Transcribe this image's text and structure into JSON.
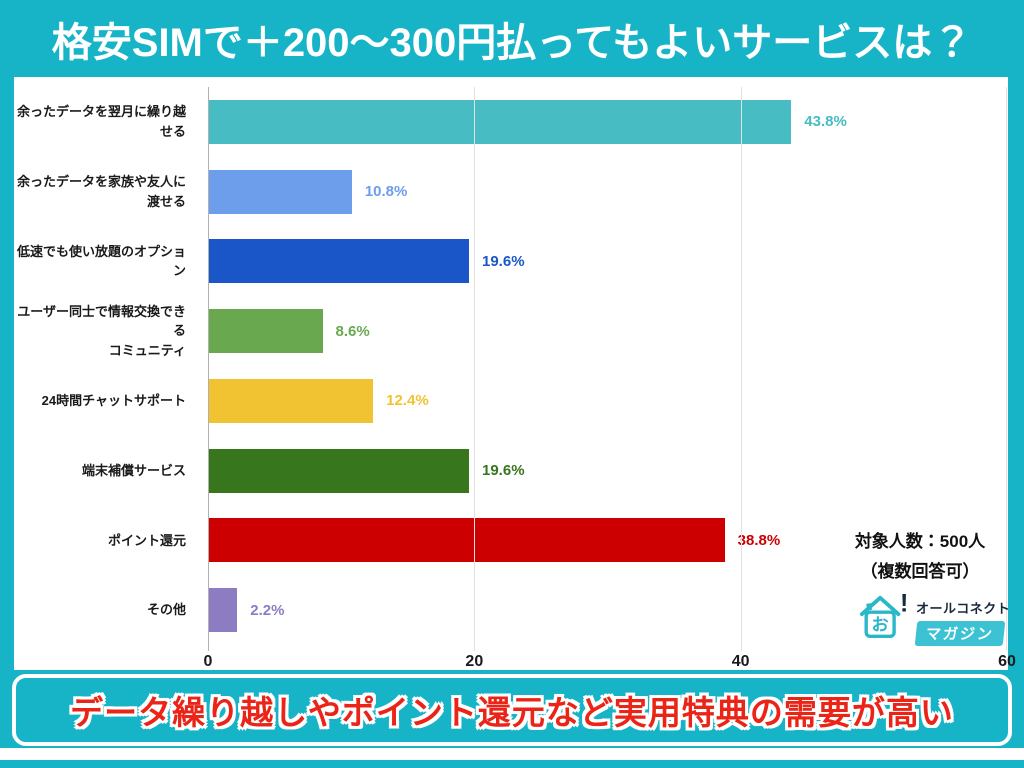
{
  "header": {
    "title": "格安SIMで＋200〜300円払ってもよいサービスは？"
  },
  "footer": {
    "message": "データ繰り越しやポイント還元など実用特典の需要が高い"
  },
  "survey_note": {
    "line1": "対象人数：500人",
    "line2": "（複数回答可）"
  },
  "logo": {
    "brand": "オールコネクト",
    "magazine": "マガジン",
    "house_char": "お",
    "exclamation": "!"
  },
  "colors": {
    "frame_teal": "#17b4c8",
    "panel_white": "#ffffff",
    "footer_text_red": "#ea2417",
    "axis_line": "#b0b0b0",
    "gridline": "#e2e2e2",
    "tick_text": "#1a1a1a",
    "logo_teal": "#2ab7c8",
    "logo_text_dark": "#16283c"
  },
  "chart_data": {
    "type": "bar",
    "orientation": "horizontal",
    "title": "格安SIMで＋200〜300円払ってもよいサービスは？",
    "categories": [
      "余ったデータを翌月に繰り越せる",
      "余ったデータを家族や友人に渡せる",
      "低速でも使い放題のオプション",
      "ユーザー同士で情報交換できるコミュニティ",
      "24時間チャットサポート",
      "端末補償サービス",
      "ポイント還元",
      "その他"
    ],
    "categories_display": [
      "余ったデータを翌月に繰り越せる",
      "余ったデータを家族や友人に渡せる",
      "低速でも使い放題のオプション",
      "ユーザー同士で情報交換できる\nコミュニティ",
      "24時間チャットサポート",
      "端末補償サービス",
      "ポイント還元",
      "その他"
    ],
    "values": [
      43.8,
      10.8,
      19.6,
      8.6,
      12.4,
      19.6,
      38.8,
      2.2
    ],
    "value_labels": [
      "43.8%",
      "10.8%",
      "19.6%",
      "8.6%",
      "12.4%",
      "19.6%",
      "38.8%",
      "2.2%"
    ],
    "bar_colors": [
      "#47bcc2",
      "#6d9eeb",
      "#1b56c8",
      "#6aa84f",
      "#f1c232",
      "#38761d",
      "#cc0000",
      "#8e7cc3"
    ],
    "xlim": [
      0,
      60
    ],
    "x_ticks": [
      0,
      20,
      40,
      60
    ],
    "grid": true,
    "legend": false,
    "annotation": "対象人数：500人（複数回答可）"
  }
}
